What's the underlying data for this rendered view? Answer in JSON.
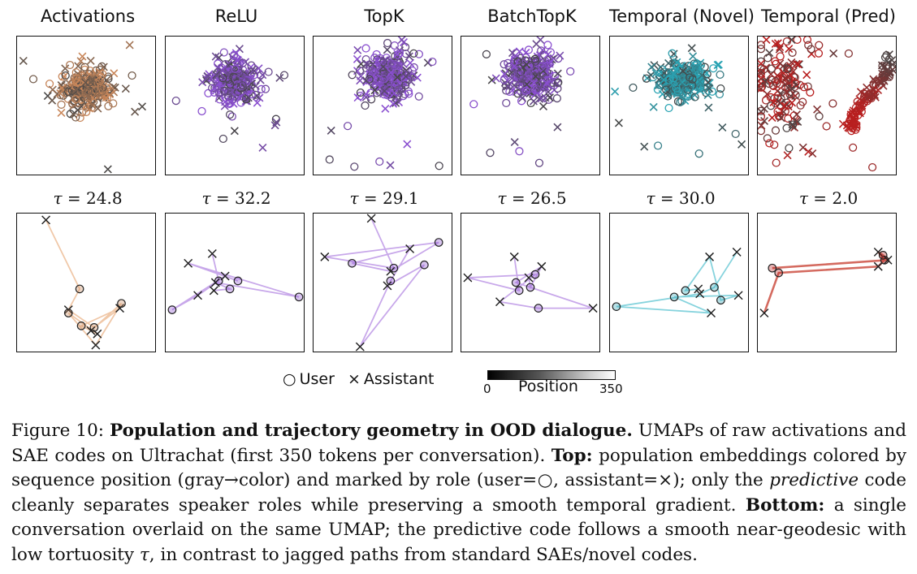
{
  "panels": [
    {
      "title": "Activations",
      "tau": "24.8",
      "color": "#c9875a",
      "line_color": "#f0c8a8"
    },
    {
      "title": "ReLU",
      "tau": "32.2",
      "color": "#8a4fd0",
      "line_color": "#c8a8ea"
    },
    {
      "title": "TopK",
      "tau": "29.1",
      "color": "#8a4fd0",
      "line_color": "#c8a8ea"
    },
    {
      "title": "BatchTopK",
      "tau": "26.5",
      "color": "#8a4fd0",
      "line_color": "#c8a8ea"
    },
    {
      "title": "Temporal (Novel)",
      "tau": "30.0",
      "color": "#2aa3b3",
      "line_color": "#86d3dd"
    },
    {
      "title": "Temporal (Pred)",
      "tau": "2.0",
      "color": "#b81f1f",
      "line_color": "#d46a5f"
    }
  ],
  "tau_symbol": "τ",
  "tau_eq": " = ",
  "legend": {
    "user_marker": "○",
    "user_label": "User",
    "assistant_marker": "×",
    "assistant_label": "Assistant"
  },
  "colorbar": {
    "label": "Position",
    "min": "0",
    "max": "350"
  },
  "caption": {
    "prefix": "Figure 10: ",
    "title": "Population and trajectory geometry in OOD dialogue.",
    "text1": " UMAPs of raw activations and SAE codes on Ultrachat (first 350 tokens per conversation). ",
    "top_label": "Top:",
    "text2": " population embeddings colored by sequence position (gray→color) and marked by role (user=○, assistant=×); only the ",
    "predictive": "predictive",
    "text3": " code cleanly separates speaker roles while preserving a smooth temporal gradient. ",
    "bottom_label": "Bottom:",
    "text4": " a single conversation overlaid on the same UMAP; the predictive code follows a smooth near-geodesic with low tortuosity ",
    "tau": "τ",
    "text5": ", in contrast to jagged paths from standard SAEs/novel codes."
  }
}
